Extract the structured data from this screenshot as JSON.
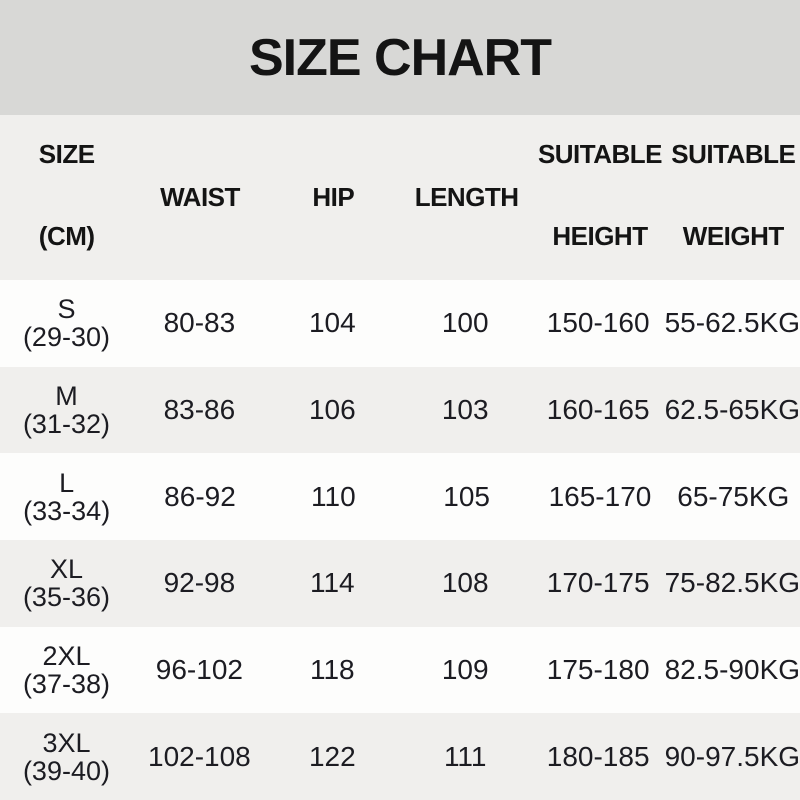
{
  "title": "SIZE CHART",
  "colors": {
    "title_band_bg": "#d8d8d6",
    "header_bg": "#f0efed",
    "row_bg": "#fdfdfc",
    "row_alt_bg": "#f0efed",
    "heading_text": "#141414",
    "data_text": "#1c1c22"
  },
  "header": {
    "size": {
      "line1": "SIZE",
      "line2": "(CM)"
    },
    "waist": "WAIST",
    "hip": "HIP",
    "length": "LENGTH",
    "height": {
      "line1": "SUITABLE",
      "line2": "HEIGHT"
    },
    "weight": {
      "line1": "SUITABLE",
      "line2": "WEIGHT"
    }
  },
  "rows": [
    {
      "size": "S",
      "range": "(29-30)",
      "waist": "80-83",
      "hip": "104",
      "length": "100",
      "height": "150-160",
      "weight": "55-62.5KG"
    },
    {
      "size": "M",
      "range": "(31-32)",
      "waist": "83-86",
      "hip": "106",
      "length": "103",
      "height": "160-165",
      "weight": "62.5-65KG"
    },
    {
      "size": "L",
      "range": "(33-34)",
      "waist": "86-92",
      "hip": "110",
      "length": "105",
      "height": "165-170",
      "weight": "65-75KG"
    },
    {
      "size": "XL",
      "range": "(35-36)",
      "waist": "92-98",
      "hip": "114",
      "length": "108",
      "height": "170-175",
      "weight": "75-82.5KG"
    },
    {
      "size": "2XL",
      "range": "(37-38)",
      "waist": "96-102",
      "hip": "118",
      "length": "109",
      "height": "175-180",
      "weight": "82.5-90KG"
    },
    {
      "size": "3XL",
      "range": "(39-40)",
      "waist": "102-108",
      "hip": "122",
      "length": "111",
      "height": "180-185",
      "weight": "90-97.5KG"
    }
  ],
  "chart_data": {
    "type": "table",
    "title": "SIZE CHART",
    "columns": [
      "SIZE (CM)",
      "WAIST",
      "HIP",
      "LENGTH",
      "SUITABLE HEIGHT",
      "SUITABLE WEIGHT"
    ],
    "rows": [
      [
        "S (29-30)",
        "80-83",
        "104",
        "100",
        "150-160",
        "55-62.5KG"
      ],
      [
        "M (31-32)",
        "83-86",
        "106",
        "103",
        "160-165",
        "62.5-65KG"
      ],
      [
        "L (33-34)",
        "86-92",
        "110",
        "105",
        "165-170",
        "65-75KG"
      ],
      [
        "XL (35-36)",
        "92-98",
        "114",
        "108",
        "170-175",
        "75-82.5KG"
      ],
      [
        "2XL (37-38)",
        "96-102",
        "118",
        "109",
        "175-180",
        "82.5-90KG"
      ],
      [
        "3XL (39-40)",
        "102-108",
        "122",
        "111",
        "180-185",
        "90-97.5KG"
      ]
    ]
  }
}
